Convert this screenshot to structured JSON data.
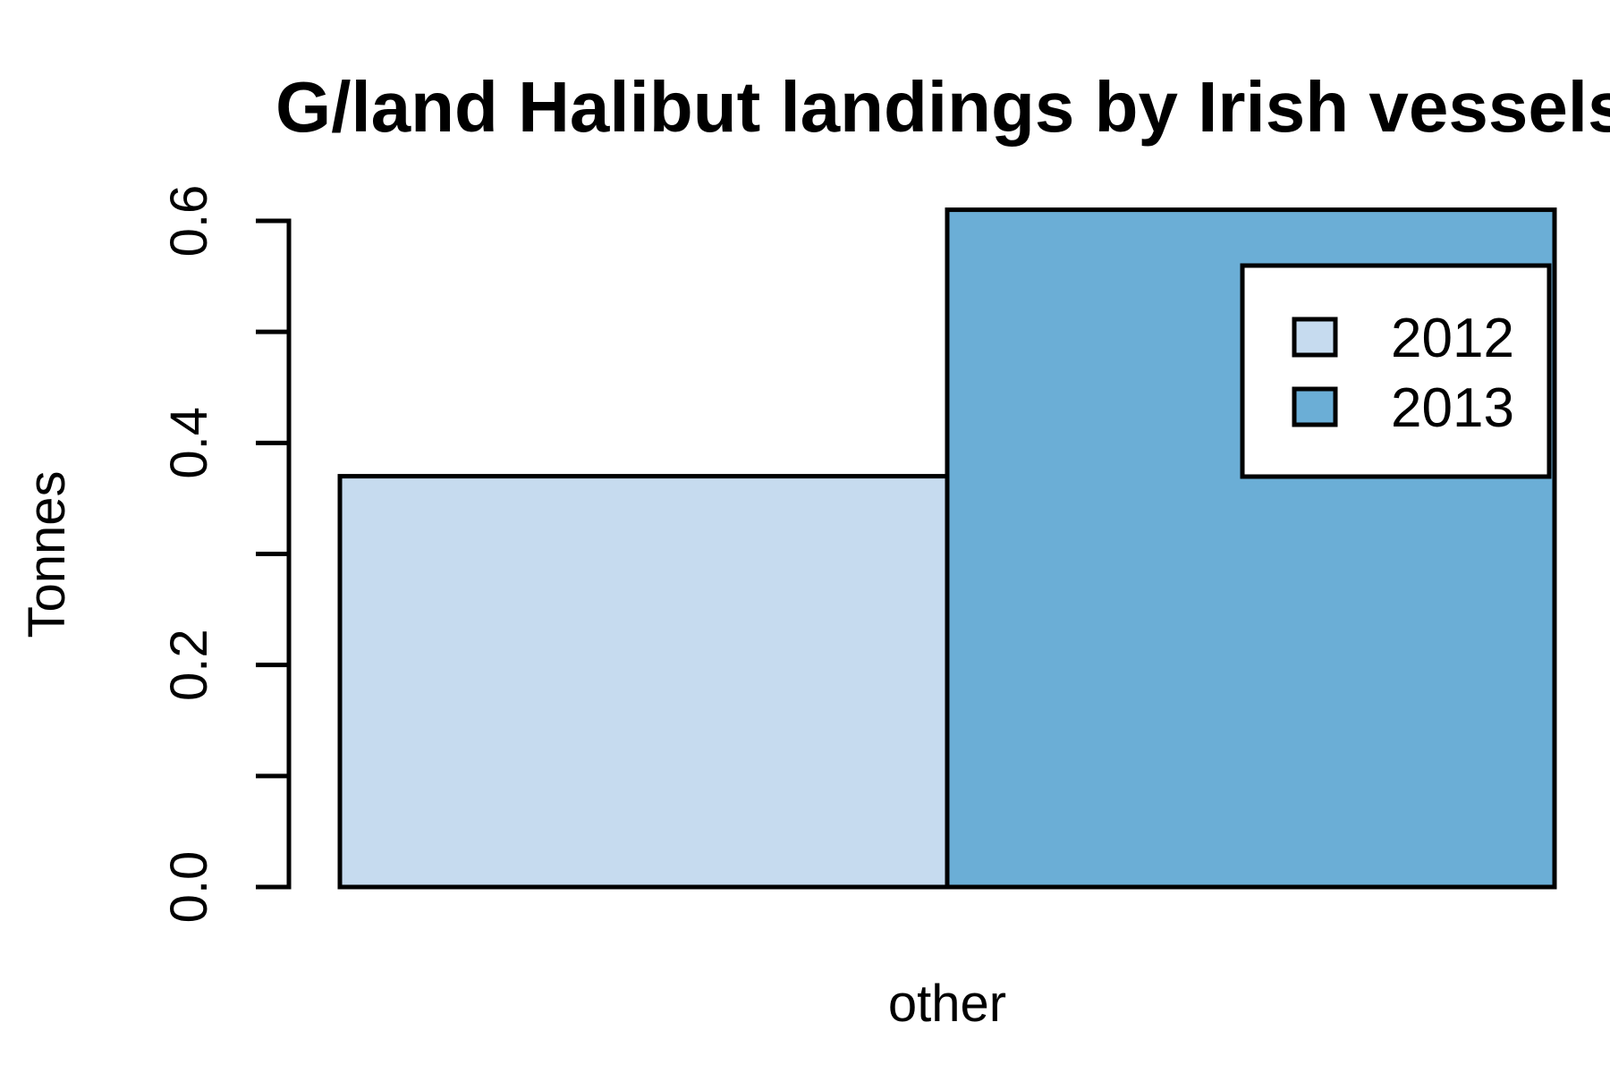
{
  "chart_data": {
    "type": "bar",
    "title": "G/land Halibut landings by Irish vessels",
    "xlabel": "",
    "ylabel": "Tonnes",
    "categories": [
      "other"
    ],
    "series": [
      {
        "name": "2012",
        "values": [
          0.37
        ],
        "color": "#c6dbef"
      },
      {
        "name": "2013",
        "values": [
          0.61
        ],
        "color": "#6baed6"
      }
    ],
    "ylim": [
      0,
      0.6
    ],
    "yticks": [
      0.0,
      0.1,
      0.2,
      0.3,
      0.4,
      0.5,
      0.6
    ],
    "ytick_labels": [
      "0.0",
      "0.2",
      "0.4",
      "0.6"
    ],
    "legend_position": "top-right",
    "grid": false
  }
}
